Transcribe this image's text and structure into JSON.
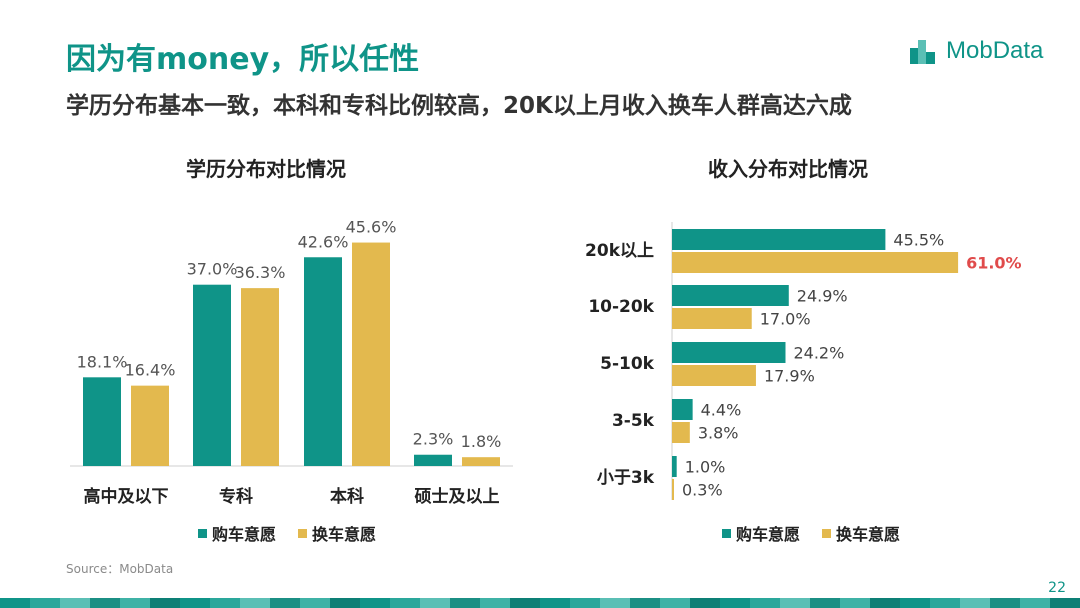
{
  "header": {
    "title": "因为有money，所以任性",
    "subtitle": "学历分布基本一致，本科和专科比例较高，20K以上月收入换车人群高达六成",
    "logo_text": "MobData"
  },
  "colors": {
    "teal": "#0f9488",
    "gold": "#e3b94e",
    "highlight": "#e04b4b"
  },
  "chart_data": [
    {
      "type": "bar",
      "title": "学历分布对比情况",
      "categories": [
        "高中及以下",
        "专科",
        "本科",
        "硕士及以上"
      ],
      "series": [
        {
          "name": "购车意愿",
          "values": [
            18.1,
            37.0,
            42.6,
            2.3
          ],
          "labels": [
            "18.1%",
            "37.0%",
            "42.6%",
            "2.3%"
          ]
        },
        {
          "name": "换车意愿",
          "values": [
            16.4,
            36.3,
            45.6,
            1.8
          ],
          "labels": [
            "16.4%",
            "36.3%",
            "45.6%",
            "1.8%"
          ]
        }
      ],
      "legend": "bottom"
    },
    {
      "type": "bar",
      "orientation": "horizontal",
      "title": "收入分布对比情况",
      "categories": [
        "20k以上",
        "10-20k",
        "5-10k",
        "3-5k",
        "小于3k"
      ],
      "series": [
        {
          "name": "购车意愿",
          "values": [
            45.5,
            24.9,
            24.2,
            4.4,
            1.0
          ],
          "labels": [
            "45.5%",
            "24.9%",
            "24.2%",
            "4.4%",
            "1.0%"
          ]
        },
        {
          "name": "换车意愿",
          "values": [
            61.0,
            17.0,
            17.9,
            3.8,
            0.3
          ],
          "labels": [
            "61.0%",
            "17.0%",
            "17.9%",
            "3.8%",
            "0.3%"
          ]
        }
      ],
      "highlight": {
        "series": 1,
        "index": 0
      },
      "legend": "bottom"
    }
  ],
  "legend_labels": [
    "购车意愿",
    "换车意愿"
  ],
  "footer": {
    "source": "Source：MobData",
    "page": "22"
  }
}
